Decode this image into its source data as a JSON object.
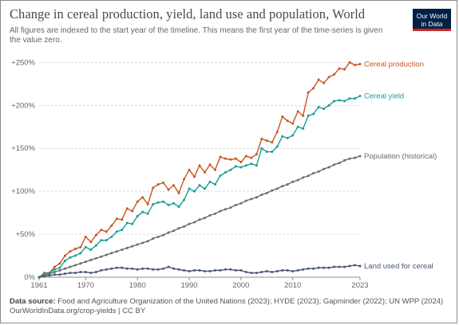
{
  "title": "Change in cereal production, yield, land use and population, World",
  "subtitle": "All figures are indexed to the start year of the timeline. This means the first year of the time-series is given the value zero.",
  "logo": {
    "line1": "Our World",
    "line2": "in Data"
  },
  "footer": {
    "source_label": "Data source:",
    "source_text": "Food and Agriculture Organization of the United Nations (2023); HYDE (2023); Gapminder (2022); UN WPP (2024)",
    "url_line": "OurWorldInData.org/crop-yields | CC BY"
  },
  "colors": {
    "production": "#c9551f",
    "yield": "#1a9e98",
    "population": "#6b6b6b",
    "land": "#4a5778",
    "grid": "#d9d9d9",
    "zero": "#8c8c8c"
  },
  "chart_data": {
    "type": "line",
    "title": "Change in cereal production, yield, land use and population, World",
    "x_start": 1961,
    "x_end": 2023,
    "xlim": [
      1961,
      2023
    ],
    "ylim": [
      0,
      255
    ],
    "y_ticks": [
      0,
      50,
      100,
      150,
      200,
      250
    ],
    "y_tick_labels": [
      "0%",
      "+50%",
      "+100%",
      "+150%",
      "+200%",
      "+250%"
    ],
    "x_ticks": [
      1961,
      1970,
      1980,
      1990,
      2000,
      2010,
      2023
    ],
    "x_tick_labels": [
      "1961",
      "1970",
      "1980",
      "1990",
      "2000",
      "2010",
      "2023"
    ],
    "grid": true,
    "series": [
      {
        "name": "Cereal production",
        "key": "production",
        "values": [
          0,
          5,
          5,
          12,
          16,
          25,
          30,
          33,
          35,
          47,
          41,
          49,
          55,
          53,
          60,
          68,
          67,
          80,
          77,
          88,
          93,
          85,
          104,
          108,
          110,
          102,
          107,
          98,
          114,
          125,
          117,
          130,
          122,
          131,
          125,
          140,
          138,
          137,
          138,
          134,
          141,
          139,
          143,
          161,
          159,
          157,
          169,
          187,
          182,
          179,
          193,
          188,
          215,
          220,
          230,
          226,
          233,
          236,
          243,
          242,
          250,
          247,
          248
        ]
      },
      {
        "name": "Cereal yield",
        "key": "yield",
        "values": [
          0,
          4,
          5,
          9,
          11,
          19,
          23,
          25,
          28,
          35,
          32,
          37,
          43,
          43,
          47,
          53,
          55,
          63,
          62,
          71,
          76,
          74,
          85,
          87,
          88,
          84,
          86,
          82,
          90,
          103,
          100,
          107,
          103,
          111,
          108,
          118,
          122,
          125,
          129,
          128,
          130,
          132,
          130,
          150,
          146,
          146,
          152,
          164,
          162,
          165,
          175,
          173,
          188,
          190,
          198,
          196,
          200,
          205,
          206,
          205,
          208,
          208,
          211
        ]
      },
      {
        "name": "Population (historical)",
        "key": "population",
        "values": [
          0,
          2,
          4,
          6,
          8,
          10,
          12,
          14,
          16,
          18,
          20,
          22,
          24,
          26,
          28,
          30,
          32,
          34,
          36,
          38,
          40,
          42,
          45,
          47,
          49,
          52,
          54,
          57,
          59,
          62,
          64,
          67,
          69,
          72,
          74,
          77,
          79,
          81,
          84,
          86,
          89,
          91,
          93,
          96,
          98,
          101,
          103,
          106,
          108,
          111,
          113,
          116,
          118,
          121,
          123,
          126,
          128,
          131,
          133,
          136,
          138,
          139,
          141
        ]
      },
      {
        "name": "Land used for cereal",
        "key": "land",
        "values": [
          0,
          1,
          2,
          3,
          3,
          4,
          5,
          5,
          6,
          6,
          5,
          6,
          8,
          9,
          10,
          11,
          11,
          10,
          10,
          9,
          10,
          10,
          9,
          9,
          10,
          12,
          10,
          9,
          8,
          7,
          8,
          8,
          7,
          7,
          8,
          8,
          9,
          9,
          8,
          8,
          6,
          5,
          5,
          6,
          7,
          6,
          7,
          8,
          8,
          7,
          8,
          9,
          10,
          10,
          11,
          11,
          11,
          12,
          12,
          12,
          13,
          14,
          13
        ]
      }
    ],
    "legend": "inline labels at line ends (right)"
  }
}
